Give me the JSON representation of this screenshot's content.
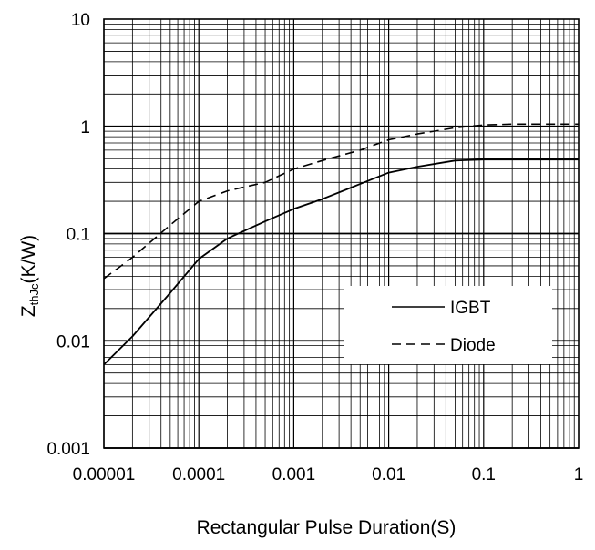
{
  "chart_data": {
    "type": "line",
    "xlabel": "Rectangular Pulse Duration(S)",
    "ylabel": {
      "main": "Z",
      "sub": "thJc",
      "unit": "(K/W)"
    },
    "x_scale": "log",
    "y_scale": "log",
    "xlim": [
      1e-05,
      1
    ],
    "ylim": [
      0.001,
      10
    ],
    "x_ticks": [
      "0.00001",
      "0.0001",
      "0.001",
      "0.01",
      "0.1",
      "1"
    ],
    "y_ticks": [
      "0.001",
      "0.01",
      "0.1",
      "1",
      "10"
    ],
    "grid": true,
    "legend_position": "lower-right",
    "series": [
      {
        "name": "IGBT",
        "style": "solid",
        "x": [
          1e-05,
          2e-05,
          5e-05,
          0.0001,
          0.0002,
          0.0005,
          0.001,
          0.002,
          0.005,
          0.01,
          0.02,
          0.05,
          0.1,
          0.2,
          0.5,
          1
        ],
        "y": [
          0.006,
          0.011,
          0.028,
          0.058,
          0.09,
          0.13,
          0.17,
          0.21,
          0.29,
          0.37,
          0.42,
          0.48,
          0.49,
          0.49,
          0.49,
          0.49
        ]
      },
      {
        "name": "Diode",
        "style": "dashed",
        "x": [
          1e-05,
          2e-05,
          5e-05,
          0.0001,
          0.0002,
          0.0005,
          0.001,
          0.002,
          0.005,
          0.01,
          0.02,
          0.05,
          0.1,
          0.2,
          0.5,
          1
        ],
        "y": [
          0.038,
          0.06,
          0.12,
          0.2,
          0.25,
          0.3,
          0.4,
          0.48,
          0.6,
          0.75,
          0.85,
          0.97,
          1.03,
          1.05,
          1.05,
          1.05
        ]
      }
    ]
  }
}
